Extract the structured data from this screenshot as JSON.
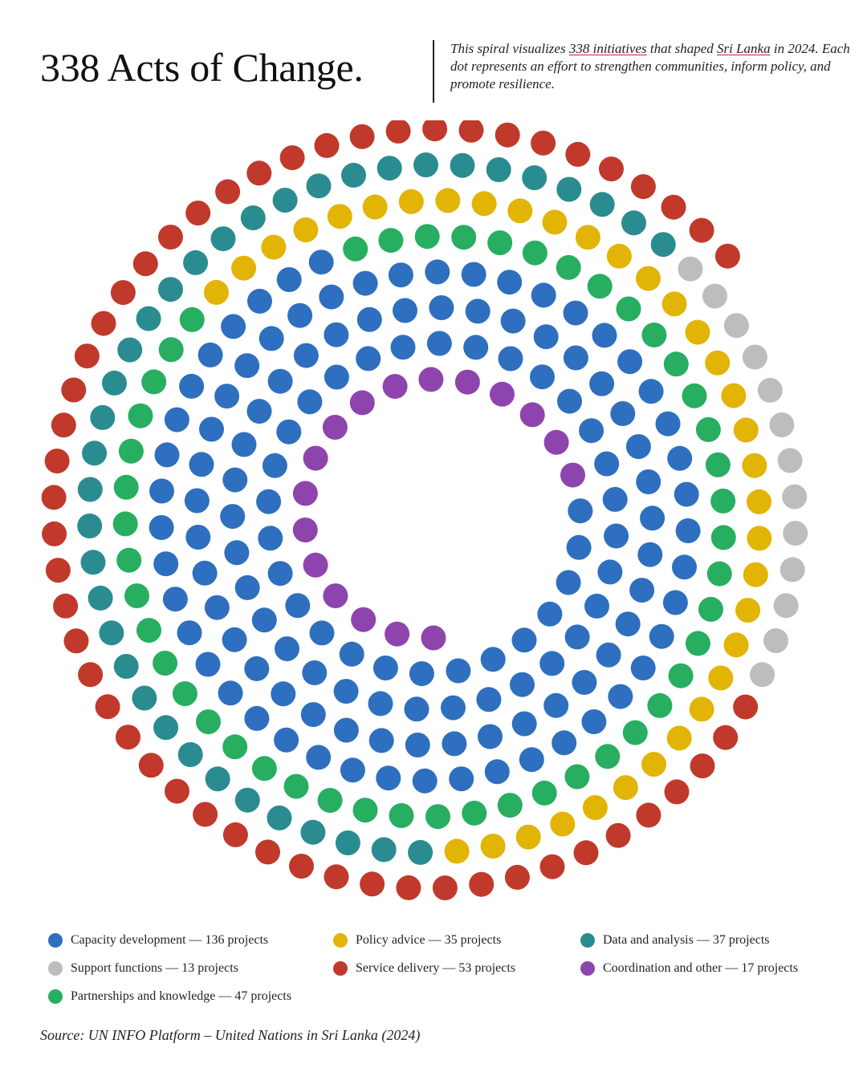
{
  "title": "338 Acts of Change.",
  "subtitle": {
    "part1": "This spiral visualizes ",
    "highlight_count": "338 initiatives",
    "part2": " that shaped ",
    "highlight_place": "Sri Lanka",
    "part3": " in 2024. Each dot represents an effort to strengthen communities, inform policy, and promote resilience."
  },
  "colors": {
    "underline": "#cc2222",
    "text": "#111111"
  },
  "chart_data": {
    "type": "dot-spiral",
    "total": 338,
    "unit": "projects",
    "direction": "clockwise from 6 o'clock",
    "categories": [
      {
        "name": "Coordination and other",
        "value": 17,
        "color": "#8e44ad"
      },
      {
        "name": "Capacity development",
        "value": 136,
        "color": "#2e6fbf"
      },
      {
        "name": "Partnerships and knowledge",
        "value": 47,
        "color": "#27ae60"
      },
      {
        "name": "Policy advice",
        "value": 35,
        "color": "#e2b405"
      },
      {
        "name": "Data and analysis",
        "value": 37,
        "color": "#2a8c90"
      },
      {
        "name": "Support functions",
        "value": 13,
        "color": "#bdbdbd"
      },
      {
        "name": "Service delivery",
        "value": 53,
        "color": "#c0392b"
      }
    ]
  },
  "legend": [
    {
      "label": "Capacity development — 136 projects",
      "color": "#2e6fbf"
    },
    {
      "label": "Policy advice — 35 projects",
      "color": "#e2b405"
    },
    {
      "label": "Data and analysis — 37 projects",
      "color": "#2a8c90"
    },
    {
      "label": "Support functions — 13 projects",
      "color": "#bdbdbd"
    },
    {
      "label": "Service delivery — 53 projects",
      "color": "#c0392b"
    },
    {
      "label": "Coordination and other — 17 projects",
      "color": "#8e44ad"
    },
    {
      "label": "Partnerships and knowledge — 47 projects",
      "color": "#27ae60"
    }
  ],
  "source": "Source: UN INFO Platform – United Nations in Sri Lanka (2024)"
}
